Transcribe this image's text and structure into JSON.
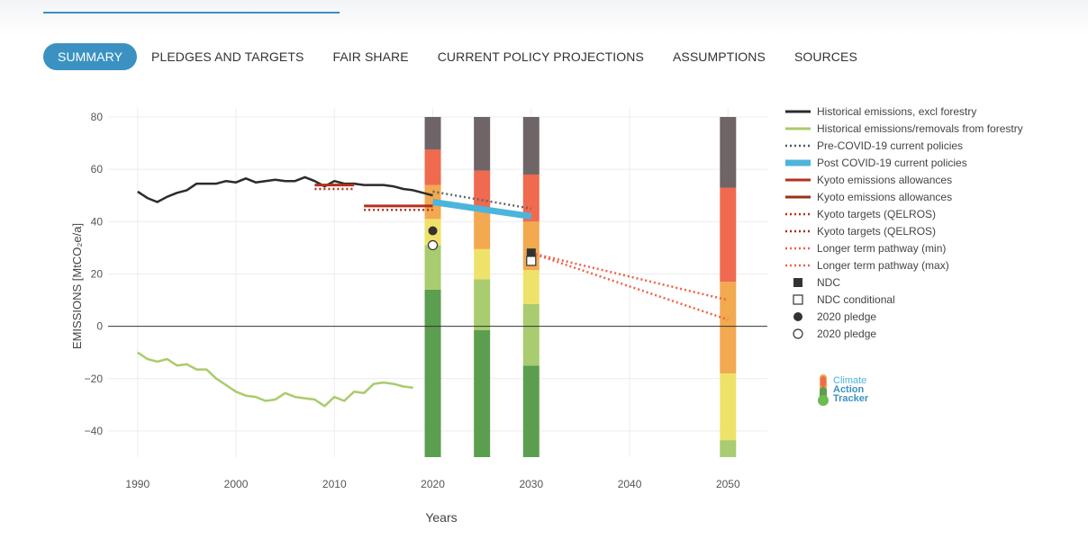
{
  "tabs": [
    {
      "label": "SUMMARY",
      "active": true
    },
    {
      "label": "PLEDGES AND TARGETS",
      "active": false
    },
    {
      "label": "FAIR SHARE",
      "active": false
    },
    {
      "label": "CURRENT POLICY PROJECTIONS",
      "active": false
    },
    {
      "label": "ASSUMPTIONS",
      "active": false
    },
    {
      "label": "SOURCES",
      "active": false
    }
  ],
  "logo": {
    "line1": "Climate",
    "line2": "Action",
    "line3": "Tracker"
  },
  "chart_data": {
    "type": "line",
    "xlabel": "Years",
    "ylabel": "EMISSIONS [MtCO₂e/a]",
    "xlim": [
      1987,
      2054
    ],
    "ylim": [
      -50,
      80
    ],
    "xticks": [
      1990,
      2000,
      2010,
      2020,
      2030,
      2040,
      2050
    ],
    "yticks": [
      80,
      60,
      40,
      20,
      0,
      -20,
      -40
    ],
    "grid": true,
    "legend_position": "right",
    "colors": {
      "historical": "#2b2b2b",
      "forestry": "#a9cc6a",
      "pre_covid": "#666666",
      "post_covid": "#4db4dc",
      "kyoto": "#b2321d",
      "longterm": "#f0604a",
      "bands": [
        "#5c9e4f",
        "#a8cc6f",
        "#efe26a",
        "#f2a950",
        "#ef6a4f",
        "#6f6567"
      ]
    },
    "legend": [
      {
        "label": "Historical emissions, excl forestry",
        "symbol": "line",
        "color": "#2b2b2b"
      },
      {
        "label": "Historical emissions/removals from forestry",
        "symbol": "line",
        "color": "#a9cc6a"
      },
      {
        "label": "Pre-COVID-19 current policies",
        "symbol": "dotted",
        "color": "#555555"
      },
      {
        "label": "Post COVID-19 current policies",
        "symbol": "thick",
        "color": "#4db4dc"
      },
      {
        "label": "Kyoto emissions allowances",
        "symbol": "line",
        "color": "#b2321d"
      },
      {
        "label": "Kyoto emissions allowances",
        "symbol": "line",
        "color": "#9c3018"
      },
      {
        "label": "Kyoto targets (QELROS)",
        "symbol": "dotted",
        "color": "#b2321d"
      },
      {
        "label": "Kyoto targets (QELROS)",
        "symbol": "dotted",
        "color": "#9c3018"
      },
      {
        "label": "Longer term pathway (min)",
        "symbol": "dotted",
        "color": "#f0604a"
      },
      {
        "label": "Longer term pathway (max)",
        "symbol": "dotted",
        "color": "#f0604a"
      },
      {
        "label": "NDC",
        "symbol": "square-filled",
        "color": "#333333"
      },
      {
        "label": "NDC conditional",
        "symbol": "square-open",
        "color": "#333333"
      },
      {
        "label": "2020 pledge",
        "symbol": "circle-filled",
        "color": "#333333"
      },
      {
        "label": "2020 pledge",
        "symbol": "circle-open",
        "color": "#333333"
      }
    ],
    "historical": {
      "x": [
        1990,
        1991,
        1992,
        1993,
        1994,
        1995,
        1996,
        1997,
        1998,
        1999,
        2000,
        2001,
        2002,
        2003,
        2004,
        2005,
        2006,
        2007,
        2008,
        2009,
        2010,
        2011,
        2012,
        2013,
        2014,
        2015,
        2016,
        2017,
        2018,
        2019,
        2020
      ],
      "y": [
        51.5,
        49,
        47.5,
        49.5,
        51,
        52,
        54.5,
        54.5,
        54.5,
        55.5,
        55,
        56.5,
        55,
        55.5,
        56,
        55.5,
        55.5,
        57,
        55.5,
        53.5,
        55.5,
        54.5,
        54.5,
        54,
        54,
        54,
        53.5,
        52.5,
        52,
        51,
        50
      ]
    },
    "forestry": {
      "x": [
        1990,
        1991,
        1992,
        1993,
        1994,
        1995,
        1996,
        1997,
        1998,
        1999,
        2000,
        2001,
        2002,
        2003,
        2004,
        2005,
        2006,
        2007,
        2008,
        2009,
        2010,
        2011,
        2012,
        2013,
        2014,
        2015,
        2016,
        2017,
        2018
      ],
      "y": [
        -10,
        -12.5,
        -13.5,
        -12.5,
        -15,
        -14.5,
        -16.5,
        -16.5,
        -20,
        -22.5,
        -25,
        -26.5,
        -27,
        -28.5,
        -28,
        -25.5,
        -27,
        -27.5,
        -28,
        -30.5,
        -27,
        -28.5,
        -25,
        -25.5,
        -22,
        -21.5,
        -22,
        -23,
        -23.5
      ]
    },
    "pre_covid": {
      "x": [
        2020,
        2030
      ],
      "y": [
        51.5,
        45
      ]
    },
    "post_covid": {
      "x": [
        2020,
        2030
      ],
      "y": [
        47.5,
        42
      ]
    },
    "kyoto_allowances": [
      {
        "x": [
          2008,
          2012
        ],
        "y": [
          54,
          54
        ]
      },
      {
        "x": [
          2013,
          2020
        ],
        "y": [
          46,
          46
        ]
      }
    ],
    "kyoto_targets": [
      {
        "x": [
          2008,
          2012
        ],
        "y": [
          52.5,
          52.5
        ]
      },
      {
        "x": [
          2013,
          2020
        ],
        "y": [
          44.5,
          44.5
        ]
      }
    ],
    "longterm_min": {
      "x": [
        2030,
        2050
      ],
      "y": [
        28,
        10
      ]
    },
    "longterm_max": {
      "x": [
        2030,
        2050
      ],
      "y": [
        28,
        2.5
      ]
    },
    "ndc": {
      "x": 2030,
      "y": 28
    },
    "ndc_conditional": {
      "x": 2030,
      "y": 25
    },
    "pledge_2020": {
      "x": 2020,
      "y": 36.5
    },
    "pledge_2020_conditional": {
      "x": 2020,
      "y": 31
    },
    "rating_bars": [
      {
        "x": 2020,
        "bounds": [
          -50,
          14,
          41,
          54,
          67.5,
          80
        ]
      },
      {
        "x": 2025,
        "bounds": [
          -50,
          -1.5,
          18,
          29.5,
          44.5,
          59.5,
          80
        ]
      },
      {
        "x": 2030,
        "bounds": [
          -50,
          -15,
          8.5,
          21.5,
          40,
          58,
          80
        ]
      },
      {
        "x": 2050,
        "bounds": [
          -50,
          -50,
          -43.5,
          -18,
          17,
          53,
          80
        ]
      }
    ]
  }
}
